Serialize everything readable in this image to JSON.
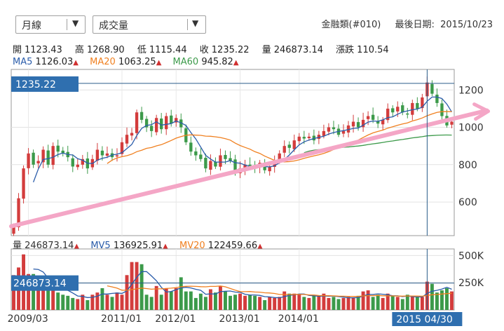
{
  "controls": {
    "period_select": "月線",
    "indicator_select": "成交量"
  },
  "header": {
    "symbol": "金融類(#010)",
    "last_date_label": "最後日期:",
    "last_date": "2015/10/23"
  },
  "ohlc": [
    {
      "label": "開",
      "value": "1123.43"
    },
    {
      "label": "高",
      "value": "1268.90"
    },
    {
      "label": "低",
      "value": "1115.44"
    },
    {
      "label": "收",
      "value": "1235.22"
    },
    {
      "label": "量",
      "value": "246873.14"
    },
    {
      "label": "漲跌",
      "value": "110.54"
    }
  ],
  "ma_legend": [
    {
      "name": "MA5",
      "value": "1126.03",
      "color": "#2a5caa"
    },
    {
      "name": "MA20",
      "value": "1063.25",
      "color": "#f08020"
    },
    {
      "name": "MA60",
      "value": "945.82",
      "color": "#3c9a4a"
    }
  ],
  "vol_legend": [
    {
      "name": "量",
      "value": "246873.14",
      "color": "#333333"
    },
    {
      "name": "MV5",
      "value": "136925.91",
      "color": "#2a5caa"
    },
    {
      "name": "MV20",
      "value": "122459.66",
      "color": "#f08020"
    }
  ],
  "markers": {
    "price_tag": "1235.22",
    "volume_tag": "246873.14",
    "cursor_date": "2015 04/30"
  },
  "chart_data": [
    {
      "type": "candlestick",
      "title": "",
      "ylim": [
        420,
        1310
      ],
      "yticks": [
        600,
        800,
        1000,
        1200
      ],
      "ytick_labels": [
        "600",
        "800",
        "1000",
        "1200"
      ],
      "xtick_labels": [
        "2009/03",
        "2011/01",
        "2012/01",
        "2013/01",
        "2014/01"
      ],
      "up_color": "#d33c3c",
      "down_color": "#3c9a4a",
      "closes": [
        470,
        620,
        780,
        860,
        800,
        820,
        880,
        800,
        900,
        870,
        860,
        840,
        790,
        800,
        830,
        780,
        830,
        880,
        850,
        860,
        840,
        850,
        920,
        960,
        970,
        1080,
        1040,
        1000,
        980,
        1050,
        990,
        1060,
        1020,
        1050,
        1000,
        920,
        870,
        850,
        830,
        780,
        820,
        790,
        850,
        830,
        820,
        760,
        780,
        800,
        790,
        780,
        810,
        770,
        790,
        820,
        860,
        900,
        890,
        930,
        950,
        940,
        950,
        930,
        960,
        980,
        1000,
        990,
        960,
        980,
        1010,
        1030,
        1000,
        1040,
        1060,
        1040,
        1020,
        1040,
        1100,
        1080,
        1110,
        1080,
        1070,
        1130,
        1100,
        1160,
        1240,
        1180,
        1130,
        1060,
        1010,
        1030
      ],
      "ma_series": [
        {
          "name": "MA5",
          "color": "#2a5caa"
        },
        {
          "name": "MA20",
          "color": "#f08020"
        },
        {
          "name": "MA60",
          "color": "#3c9a4a"
        }
      ],
      "trendline": {
        "color": "#f4a6c6",
        "from": [
          0,
          470
        ],
        "to": [
          1.08,
          1090
        ]
      },
      "cursor_index": 84
    },
    {
      "type": "bar",
      "title": "",
      "ylim": [
        0,
        560000
      ],
      "ytick_labels": [
        "500K",
        "250K"
      ],
      "yticks": [
        500000,
        250000
      ],
      "values": [
        320000,
        390000,
        510000,
        330000,
        330000,
        300000,
        270000,
        230000,
        240000,
        160000,
        140000,
        130000,
        110000,
        100000,
        140000,
        90000,
        140000,
        160000,
        200000,
        140000,
        120000,
        160000,
        140000,
        320000,
        440000,
        440000,
        420000,
        140000,
        120000,
        220000,
        140000,
        200000,
        170000,
        200000,
        300000,
        170000,
        170000,
        110000,
        150000,
        120000,
        190000,
        160000,
        220000,
        170000,
        130000,
        140000,
        150000,
        130000,
        140000,
        130000,
        120000,
        90000,
        120000,
        110000,
        120000,
        170000,
        150000,
        150000,
        140000,
        120000,
        110000,
        130000,
        130000,
        150000,
        110000,
        120000,
        100000,
        110000,
        120000,
        110000,
        130000,
        170000,
        180000,
        120000,
        140000,
        110000,
        150000,
        130000,
        120000,
        100000,
        140000,
        120000,
        120000,
        120000,
        260000,
        240000,
        160000,
        180000,
        200000,
        170000
      ]
    }
  ]
}
